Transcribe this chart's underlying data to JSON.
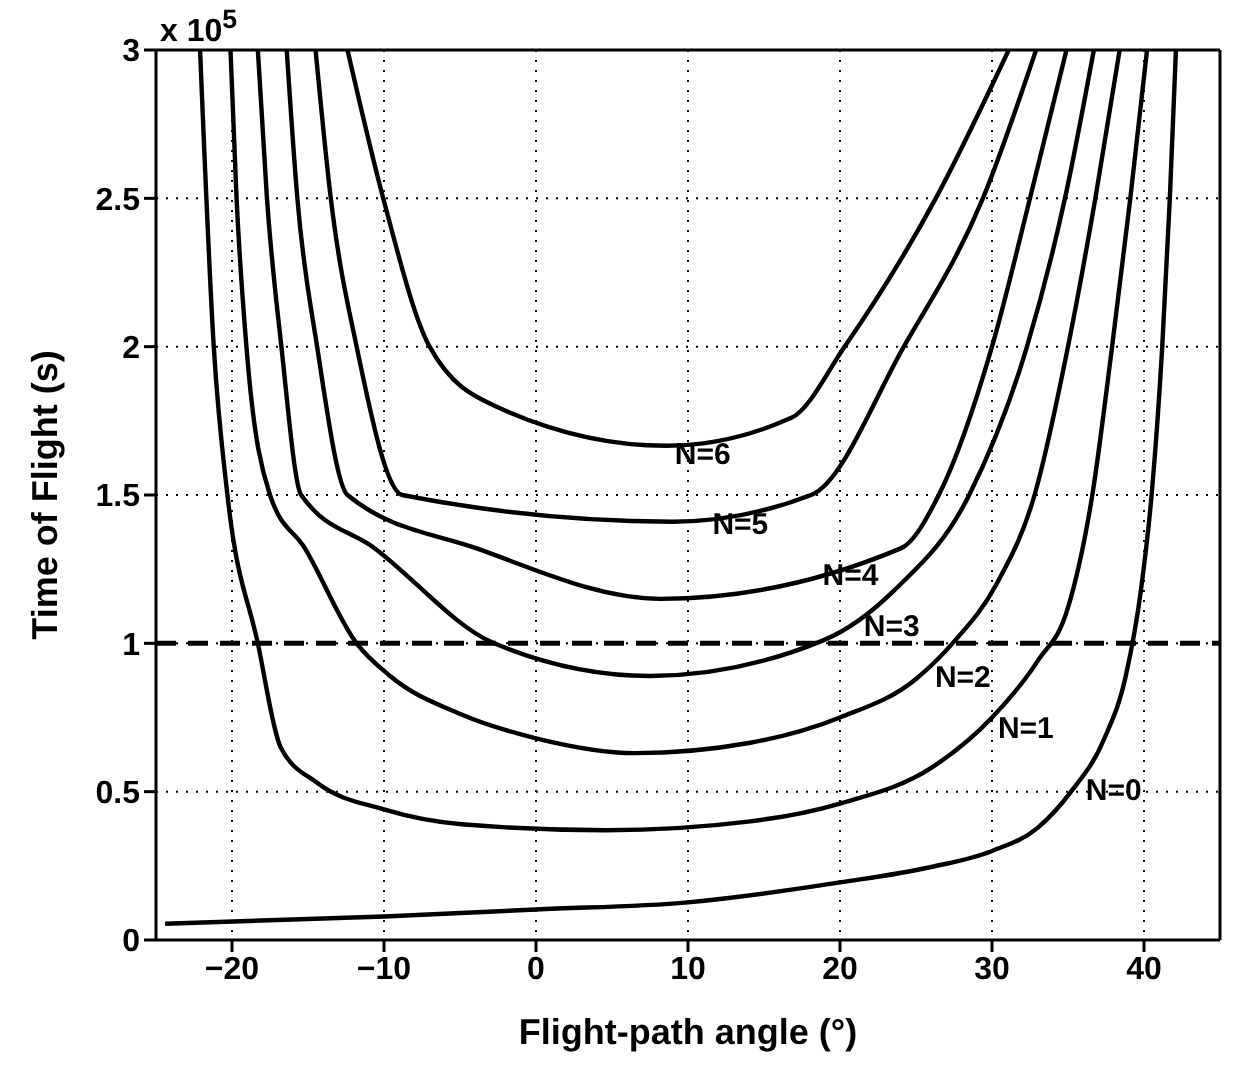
{
  "chart_data": {
    "type": "line",
    "xlabel": "Flight-path angle (°)",
    "ylabel": "Time of Flight (s)",
    "xlim": [
      -25,
      45
    ],
    "xticks": [
      -20,
      -10,
      0,
      10,
      20,
      30,
      40
    ],
    "ylim": [
      0,
      3
    ],
    "yticks": [
      0,
      0.5,
      1,
      1.5,
      2,
      2.5,
      3
    ],
    "grid": true,
    "legend": false,
    "marker": "none",
    "line_style": "solid",
    "ref_lines": [
      {
        "axis": "y",
        "value": 1,
        "color": "#000000",
        "line_style": "dashed"
      }
    ],
    "annotations": [
      "x 10$^{5}$"
    ],
    "series": [
      {
        "name": "N=0",
        "color": "#000000",
        "x": [
          -24.4,
          -10,
          0,
          10,
          20,
          26,
          30,
          33,
          35.2,
          37.4,
          38.8,
          39.8,
          40.5,
          41.2,
          41.7,
          42.1
        ],
        "values": [
          0.055,
          0.079,
          0.103,
          0.127,
          0.194,
          0.246,
          0.3,
          0.378,
          0.5,
          0.68,
          0.89,
          1.18,
          1.5,
          2,
          2.5,
          3
        ]
      },
      {
        "name": "N=1",
        "color": "#000000",
        "x": [
          -22.1,
          -21.2,
          -20.3,
          -18.3,
          -16.8,
          -14.4,
          -10,
          -4.9,
          4.6,
          14.1,
          20,
          26,
          30,
          33,
          35,
          36.6,
          37.9,
          39.1,
          40.2
        ],
        "values": [
          3,
          2,
          1.5,
          1,
          0.65,
          0.53,
          0.44,
          0.39,
          0.37,
          0.4,
          0.46,
          0.58,
          0.75,
          0.94,
          1.12,
          1.5,
          2,
          2.5,
          3
        ]
      },
      {
        "name": "N=2",
        "color": "#000000",
        "x": [
          -20.1,
          -19.7,
          -19.05,
          -17.5,
          -15.2,
          -11.8,
          -9.6,
          -4.9,
          0,
          6.5,
          14.1,
          20,
          25,
          27.4,
          30.3,
          32.8,
          35,
          36.8,
          38.4
        ],
        "values": [
          3,
          2.5,
          2,
          1.5,
          1.32,
          1,
          0.89,
          0.76,
          0.68,
          0.63,
          0.665,
          0.75,
          0.88,
          1,
          1.2,
          1.5,
          2,
          2.5,
          3
        ]
      },
      {
        "name": "N=3",
        "color": "#000000",
        "x": [
          -18.3,
          -17.7,
          -16.75,
          -15.45,
          -10.6,
          -2.75,
          7.5,
          18.9,
          23.6,
          28.5,
          32.3,
          34.8,
          36.7
        ],
        "values": [
          3,
          2.5,
          2,
          1.5,
          1.32,
          1,
          0.89,
          1.01,
          1.18,
          1.5,
          2,
          2.5,
          3
        ]
      },
      {
        "name": "N=4",
        "color": "#000000",
        "x": [
          -16.4,
          -15.7,
          -14.4,
          -12.4,
          -3.9,
          8.2,
          24,
          26.5,
          30,
          32.5,
          34.9
        ],
        "values": [
          3,
          2.5,
          2,
          1.5,
          1.32,
          1.15,
          1.32,
          1.5,
          2,
          2.5,
          3
        ]
      },
      {
        "name": "N=5",
        "color": "#000000",
        "x": [
          -14.5,
          -13.5,
          -11.8,
          -8.8,
          9,
          18.1,
          24.2,
          29.4,
          32.9
        ],
        "values": [
          3,
          2.5,
          2,
          1.5,
          1.41,
          1.5,
          2,
          2.5,
          3
        ]
      },
      {
        "name": "N=6",
        "color": "#000000",
        "x": [
          -12.4,
          -10.05,
          -7,
          -2.7,
          8.6,
          16.8,
          20.3,
          26.3,
          31.1
        ],
        "values": [
          3,
          2.5,
          2,
          1.8,
          1.666,
          1.76,
          2,
          2.5,
          3
        ]
      }
    ]
  }
}
